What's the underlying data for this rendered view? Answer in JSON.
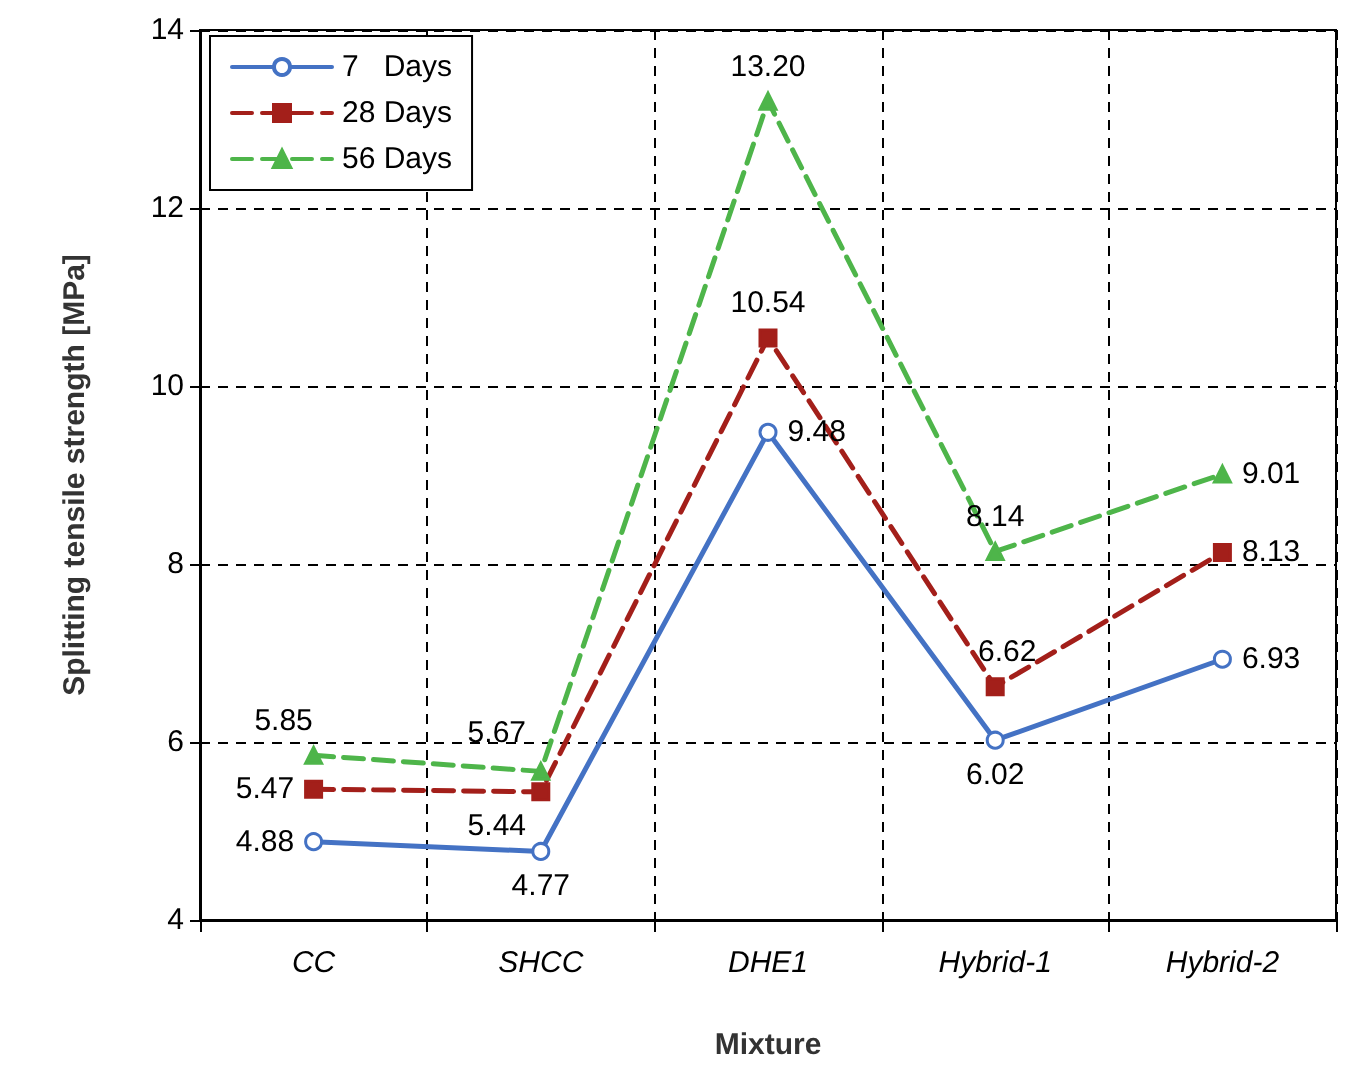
{
  "chart_data": {
    "type": "line",
    "xlabel": "Mixture",
    "ylabel": "Splitting tensile strength [MPa]",
    "categories": [
      "CC",
      "SHCC",
      "DHE1",
      "Hybrid-1",
      "Hybrid-2"
    ],
    "series": [
      {
        "name": "7   Days",
        "color": "#4472c4",
        "marker": "circle",
        "line_style": "solid",
        "values": [
          4.88,
          4.77,
          9.48,
          6.02,
          6.93
        ],
        "value_labels": [
          "4.88",
          "4.77",
          "9.48",
          "6.02",
          "6.93"
        ]
      },
      {
        "name": "28 Days",
        "color": "#a31f1a",
        "marker": "square",
        "line_style": "dashed",
        "values": [
          5.47,
          5.44,
          10.54,
          6.62,
          8.13
        ],
        "value_labels": [
          "5.47",
          "5.44",
          "10.54",
          "6.62",
          "8.13"
        ]
      },
      {
        "name": "56 Days",
        "color": "#4eb54a",
        "marker": "triangle",
        "line_style": "dashed",
        "values": [
          5.85,
          5.67,
          13.2,
          8.14,
          9.01
        ],
        "value_labels": [
          "5.85",
          "5.67",
          "13.20",
          "8.14",
          "9.01"
        ]
      }
    ],
    "ylim": [
      4,
      14
    ],
    "yticks": [
      4,
      6,
      8,
      10,
      12,
      14
    ],
    "grid": true,
    "legend": "top left"
  }
}
